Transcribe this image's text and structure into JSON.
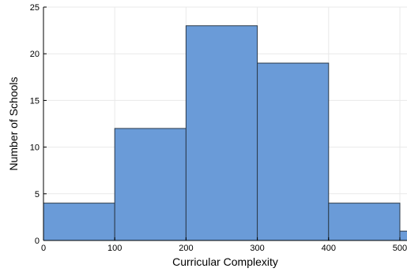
{
  "chart_data": {
    "type": "bar",
    "bins": [
      {
        "start": 0,
        "end": 100,
        "count": 4
      },
      {
        "start": 100,
        "end": 200,
        "count": 12
      },
      {
        "start": 200,
        "end": 300,
        "count": 23
      },
      {
        "start": 300,
        "end": 400,
        "count": 19
      },
      {
        "start": 400,
        "end": 500,
        "count": 4
      },
      {
        "start": 500,
        "end": 600,
        "count": 1
      }
    ],
    "title": "",
    "xlabel": "Curricular Complexity",
    "ylabel": "Number of Schools",
    "xlim": [
      0,
      510
    ],
    "ylim": [
      0,
      25
    ],
    "x_ticks": [
      0,
      100,
      200,
      300,
      400,
      500
    ],
    "y_ticks": [
      0,
      5,
      10,
      15,
      20,
      25
    ],
    "grid": true,
    "legend": "none",
    "colors": {
      "bar_fill": "#6a9bd8",
      "bar_stroke": "#2b3a4a",
      "grid": "#e9e9e9",
      "axis": "#000000"
    }
  }
}
